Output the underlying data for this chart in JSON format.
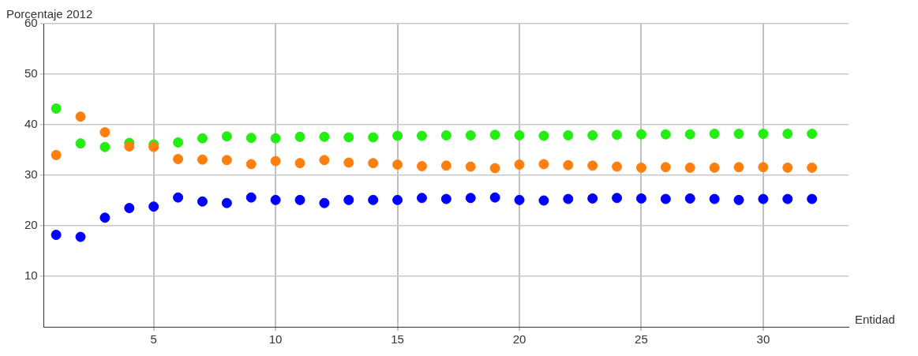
{
  "chart_data": {
    "type": "scatter",
    "ylabel": "Porcentaje 2012",
    "xlabel": "Entidad",
    "x": [
      1,
      2,
      3,
      4,
      5,
      6,
      7,
      8,
      9,
      10,
      11,
      12,
      13,
      14,
      15,
      16,
      17,
      18,
      19,
      20,
      21,
      22,
      23,
      24,
      25,
      26,
      27,
      28,
      29,
      30,
      31,
      32
    ],
    "series": [
      {
        "color": "#22ee11",
        "values": [
          43.2,
          36.3,
          35.6,
          36.4,
          36.1,
          36.5,
          37.3,
          37.7,
          37.4,
          37.3,
          37.6,
          37.6,
          37.5,
          37.5,
          37.8,
          37.8,
          37.9,
          37.9,
          38.0,
          37.9,
          37.8,
          37.9,
          37.9,
          38.0,
          38.1,
          38.1,
          38.1,
          38.2,
          38.2,
          38.2,
          38.2,
          38.2
        ]
      },
      {
        "color": "#ff7f0e",
        "values": [
          34.0,
          41.6,
          38.5,
          35.7,
          35.6,
          33.2,
          33.1,
          33.0,
          32.2,
          32.8,
          32.4,
          33.0,
          32.5,
          32.4,
          32.1,
          31.8,
          31.9,
          31.7,
          31.4,
          32.1,
          32.2,
          32.0,
          31.9,
          31.7,
          31.5,
          31.6,
          31.5,
          31.5,
          31.6,
          31.6,
          31.5,
          31.5
        ]
      },
      {
        "color": "#0000ff",
        "values": [
          18.2,
          17.8,
          21.6,
          23.5,
          23.8,
          25.6,
          24.8,
          24.5,
          25.6,
          25.1,
          25.1,
          24.5,
          25.1,
          25.1,
          25.1,
          25.5,
          25.3,
          25.5,
          25.6,
          25.1,
          25.0,
          25.3,
          25.4,
          25.5,
          25.4,
          25.3,
          25.4,
          25.3,
          25.1,
          25.3,
          25.3,
          25.3
        ]
      }
    ],
    "xlim": [
      0.5,
      33.5
    ],
    "xticks": [
      5,
      10,
      15,
      20,
      25,
      30
    ],
    "ylim": [
      0,
      60
    ],
    "yticks": [
      10,
      20,
      30,
      40,
      50,
      60
    ],
    "grid": true,
    "legend": false,
    "marker": "circle"
  }
}
